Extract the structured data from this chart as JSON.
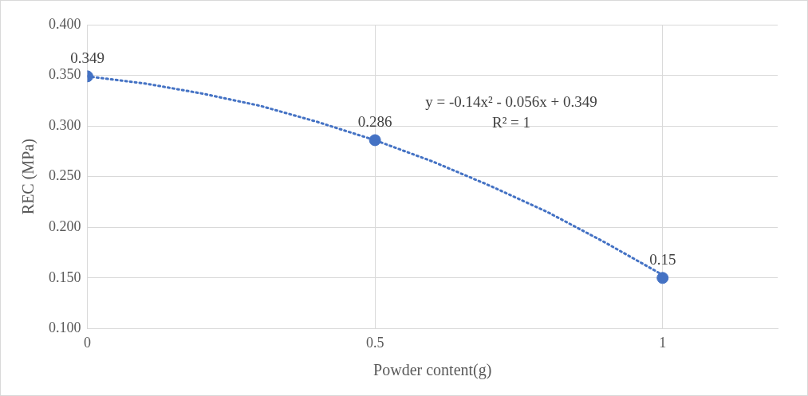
{
  "chart_data": {
    "type": "scatter",
    "xlabel": "Powder content(g)",
    "ylabel": "REC (MPa)",
    "xlim": [
      0,
      1.2
    ],
    "xticks": [
      0,
      0.5,
      1
    ],
    "ylim": [
      0.1,
      0.4
    ],
    "yticks": [
      {
        "value": 0.1,
        "label": "0.100"
      },
      {
        "value": 0.15,
        "label": "0.150"
      },
      {
        "value": 0.2,
        "label": "0.200"
      },
      {
        "value": 0.25,
        "label": "0.250"
      },
      {
        "value": 0.3,
        "label": "0.300"
      },
      {
        "value": 0.35,
        "label": "0.350"
      },
      {
        "value": 0.4,
        "label": "0.400"
      }
    ],
    "grid": true,
    "legend": false,
    "series": [
      {
        "type": "line",
        "color": "#4472c4",
        "x": [
          0,
          0.1,
          0.2,
          0.3,
          0.4,
          0.5,
          0.6,
          0.7,
          0.8,
          0.9,
          1
        ],
        "values": [
          0.349,
          0.342,
          0.332,
          0.32,
          0.304,
          0.286,
          0.265,
          0.241,
          0.215,
          0.185,
          0.153
        ],
        "line_style": "dotted",
        "marker": "none"
      },
      {
        "type": "scatter",
        "color": "#4472c4",
        "x": [
          0,
          0.5,
          1
        ],
        "values": [
          0.349,
          0.286,
          0.15
        ],
        "marker": "circle",
        "value_labels": [
          "0.349",
          "0.286",
          "0.15"
        ]
      }
    ],
    "annotations": [
      "y = -0.14x² - 0.056x + 0.349",
      "R² = 1"
    ]
  }
}
